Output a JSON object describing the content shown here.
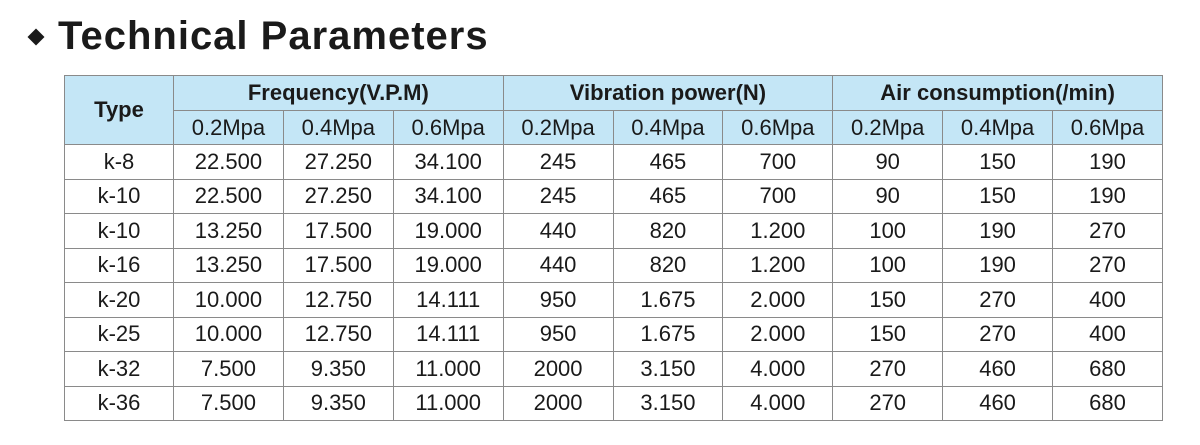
{
  "header": {
    "title": "Technical Parameters"
  },
  "table": {
    "type_label": "Type",
    "groups": [
      "Frequency(V.P.M)",
      "Vibration power(N)",
      "Air consumption(/min)"
    ],
    "subheaders": [
      "0.2Mpa",
      "0.4Mpa",
      "0.6Mpa",
      "0.2Mpa",
      "0.4Mpa",
      "0.6Mpa",
      "0.2Mpa",
      "0.4Mpa",
      "0.6Mpa"
    ],
    "rows": [
      [
        "k-8",
        "22.500",
        "27.250",
        "34.100",
        "245",
        "465",
        "700",
        "90",
        "150",
        "190"
      ],
      [
        "k-10",
        "22.500",
        "27.250",
        "34.100",
        "245",
        "465",
        "700",
        "90",
        "150",
        "190"
      ],
      [
        "k-10",
        "13.250",
        "17.500",
        "19.000",
        "440",
        "820",
        "1.200",
        "100",
        "190",
        "270"
      ],
      [
        "k-16",
        "13.250",
        "17.500",
        "19.000",
        "440",
        "820",
        "1.200",
        "100",
        "190",
        "270"
      ],
      [
        "k-20",
        "10.000",
        "12.750",
        "14.111",
        "950",
        "1.675",
        "2.000",
        "150",
        "270",
        "400"
      ],
      [
        "k-25",
        "10.000",
        "12.750",
        "14.111",
        "950",
        "1.675",
        "2.000",
        "150",
        "270",
        "400"
      ],
      [
        "k-32",
        "7.500",
        "9.350",
        "11.000",
        "2000",
        "3.150",
        "4.000",
        "270",
        "460",
        "680"
      ],
      [
        "k-36",
        "7.500",
        "9.350",
        "11.000",
        "2000",
        "3.150",
        "4.000",
        "270",
        "460",
        "680"
      ]
    ]
  }
}
